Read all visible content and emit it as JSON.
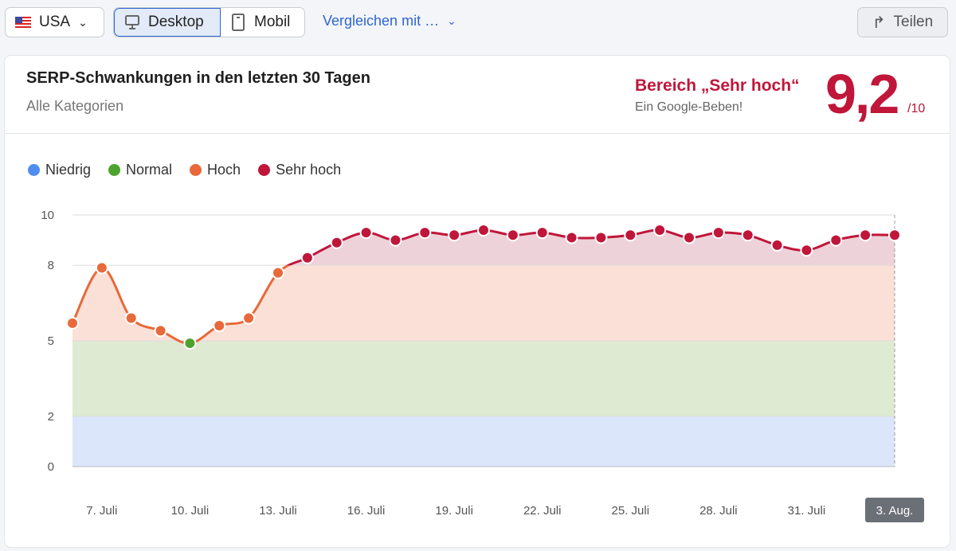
{
  "toolbar": {
    "country": "USA",
    "desktop": "Desktop",
    "mobile": "Mobil",
    "compare": "Vergleichen mit …",
    "share": "Teilen"
  },
  "card": {
    "title": "SERP-Schwankungen in den letzten 30 Tagen",
    "subtitle": "Alle Kategorien",
    "range_label": "Bereich „Sehr hoch“",
    "range_sub": "Ein Google-Beben!",
    "score": "9,2",
    "score_max": "/10"
  },
  "colors": {
    "niedrig": "#4f8ef0",
    "normal": "#4ea22e",
    "hoch": "#e8693a",
    "sehr_hoch": "#c0163a"
  },
  "chart_data": {
    "type": "line",
    "legend": [
      "Niedrig",
      "Normal",
      "Hoch",
      "Sehr hoch"
    ],
    "ylim": [
      0,
      10
    ],
    "yticks": [
      0,
      2,
      5,
      8,
      10
    ],
    "thresholds": {
      "niedrig": [
        0,
        2
      ],
      "normal": [
        2,
        5
      ],
      "hoch": [
        5,
        8
      ],
      "sehr_hoch": [
        8,
        10
      ]
    },
    "x": [
      "6. Juli",
      "7. Juli",
      "8. Juli",
      "9. Juli",
      "10. Juli",
      "11. Juli",
      "12. Juli",
      "13. Juli",
      "14. Juli",
      "15. Juli",
      "16. Juli",
      "17. Juli",
      "18. Juli",
      "19. Juli",
      "20. Juli",
      "21. Juli",
      "22. Juli",
      "23. Juli",
      "24. Juli",
      "25. Juli",
      "26. Juli",
      "27. Juli",
      "28. Juli",
      "29. Juli",
      "30. Juli",
      "31. Juli",
      "1. Aug.",
      "2. Aug.",
      "3. Aug."
    ],
    "values": [
      5.7,
      7.9,
      5.9,
      5.4,
      4.9,
      5.6,
      5.9,
      7.7,
      8.3,
      8.9,
      9.3,
      9.0,
      9.3,
      9.2,
      9.4,
      9.2,
      9.3,
      9.1,
      9.1,
      9.2,
      9.4,
      9.1,
      9.3,
      9.2,
      8.8,
      8.6,
      9.0,
      9.2,
      9.2
    ],
    "xtick_labels": [
      "7. Juli",
      "10. Juli",
      "13. Juli",
      "16. Juli",
      "19. Juli",
      "22. Juli",
      "25. Juli",
      "28. Juli",
      "31. Juli",
      "3. Aug."
    ],
    "selected": "3. Aug."
  }
}
